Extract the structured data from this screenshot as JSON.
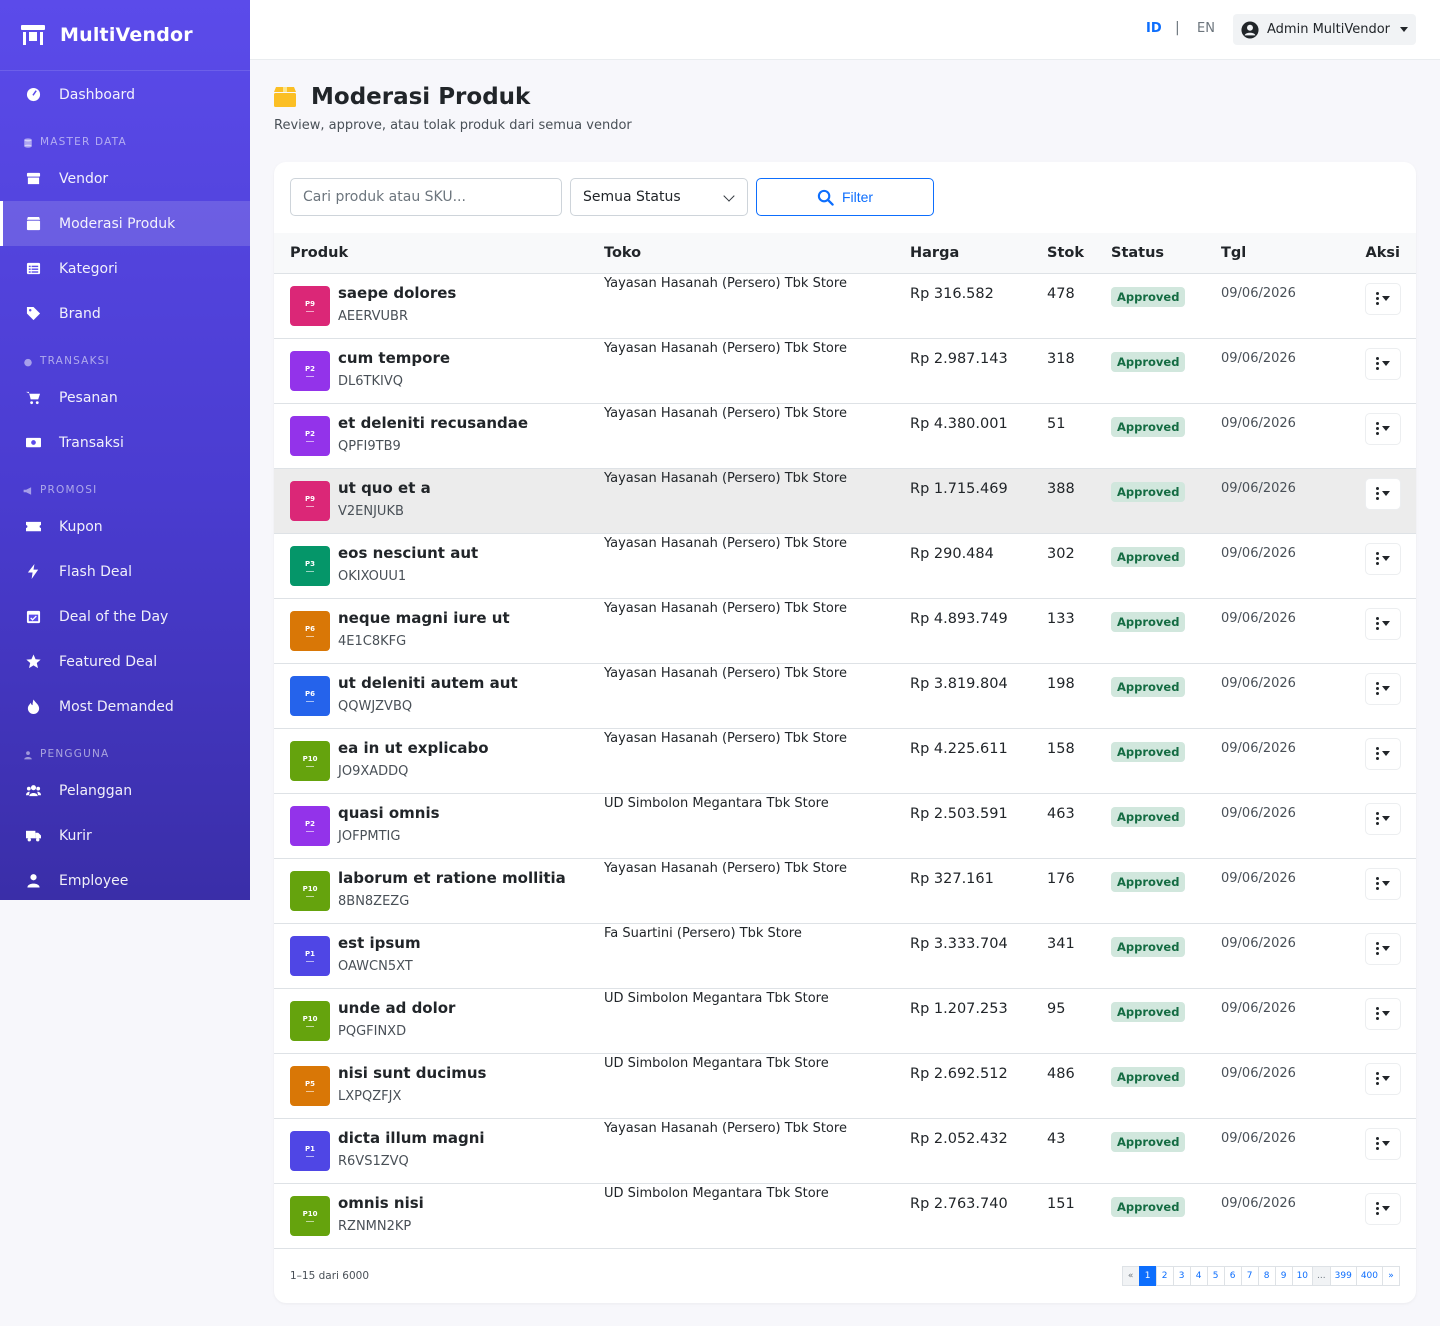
{
  "brand": {
    "name": "MultiVendor"
  },
  "sidebar": {
    "items": [
      {
        "type": "item",
        "label": "Dashboard",
        "icon": "dashboard-icon"
      },
      {
        "type": "section",
        "label": "MASTER DATA",
        "icon": "database-icon"
      },
      {
        "type": "item",
        "label": "Vendor",
        "icon": "store-icon"
      },
      {
        "type": "item",
        "label": "Moderasi Produk",
        "icon": "box-icon",
        "active": true
      },
      {
        "type": "item",
        "label": "Kategori",
        "icon": "list-icon"
      },
      {
        "type": "item",
        "label": "Brand",
        "icon": "tag-icon"
      },
      {
        "type": "section",
        "label": "TRANSAKSI",
        "icon": "coins-icon"
      },
      {
        "type": "item",
        "label": "Pesanan",
        "icon": "cart-icon"
      },
      {
        "type": "item",
        "label": "Transaksi",
        "icon": "money-icon"
      },
      {
        "type": "section",
        "label": "PROMOSI",
        "icon": "bullhorn-icon"
      },
      {
        "type": "item",
        "label": "Kupon",
        "icon": "ticket-icon"
      },
      {
        "type": "item",
        "label": "Flash Deal",
        "icon": "bolt-icon"
      },
      {
        "type": "item",
        "label": "Deal of the Day",
        "icon": "calendar-icon"
      },
      {
        "type": "item",
        "label": "Featured Deal",
        "icon": "star-icon"
      },
      {
        "type": "item",
        "label": "Most Demanded",
        "icon": "fire-icon"
      },
      {
        "type": "section",
        "label": "PENGGUNA",
        "icon": "users-section-icon"
      },
      {
        "type": "item",
        "label": "Pelanggan",
        "icon": "users-icon"
      },
      {
        "type": "item",
        "label": "Kurir",
        "icon": "truck-icon"
      },
      {
        "type": "item",
        "label": "Employee",
        "icon": "user-tie-icon"
      }
    ]
  },
  "topbar": {
    "lang_id": "ID",
    "lang_sep": "|",
    "lang_en": "EN",
    "user_name": "Admin MultiVendor"
  },
  "page": {
    "title": "Moderasi Produk",
    "subtitle": "Review, approve, atau tolak produk dari semua vendor"
  },
  "filters": {
    "search_placeholder": "Cari produk atau SKU...",
    "status_value": "Semua Status",
    "filter_label": "Filter"
  },
  "table": {
    "headers": {
      "produk": "Produk",
      "toko": "Toko",
      "harga": "Harga",
      "stok": "Stok",
      "status": "Status",
      "tgl": "Tgl",
      "aksi": "Aksi"
    },
    "rows": [
      {
        "thumb": "P9",
        "thumb_color": "#db2777",
        "name": "saepe dolores",
        "sku": "AEERVUBR",
        "toko": "Yayasan Hasanah (Persero) Tbk Store",
        "harga": "Rp 316.582",
        "stok": "478",
        "status": "Approved",
        "tgl": "09/06/2026"
      },
      {
        "thumb": "P2",
        "thumb_color": "#9333ea",
        "name": "cum tempore",
        "sku": "DL6TKIVQ",
        "toko": "Yayasan Hasanah (Persero) Tbk Store",
        "harga": "Rp 2.987.143",
        "stok": "318",
        "status": "Approved",
        "tgl": "09/06/2026"
      },
      {
        "thumb": "P2",
        "thumb_color": "#9333ea",
        "name": "et deleniti recusandae",
        "sku": "QPFI9TB9",
        "toko": "Yayasan Hasanah (Persero) Tbk Store",
        "harga": "Rp 4.380.001",
        "stok": "51",
        "status": "Approved",
        "tgl": "09/06/2026"
      },
      {
        "thumb": "P9",
        "thumb_color": "#db2777",
        "name": "ut quo et a",
        "sku": "V2ENJUKB",
        "toko": "Yayasan Hasanah (Persero) Tbk Store",
        "harga": "Rp 1.715.469",
        "stok": "388",
        "status": "Approved",
        "tgl": "09/06/2026"
      },
      {
        "thumb": "P3",
        "thumb_color": "#059669",
        "name": "eos nesciunt aut",
        "sku": "OKIXOUU1",
        "toko": "Yayasan Hasanah (Persero) Tbk Store",
        "harga": "Rp 290.484",
        "stok": "302",
        "status": "Approved",
        "tgl": "09/06/2026"
      },
      {
        "thumb": "P6",
        "thumb_color": "#d97706",
        "name": "neque magni iure ut",
        "sku": "4E1C8KFG",
        "toko": "Yayasan Hasanah (Persero) Tbk Store",
        "harga": "Rp 4.893.749",
        "stok": "133",
        "status": "Approved",
        "tgl": "09/06/2026"
      },
      {
        "thumb": "P6",
        "thumb_color": "#2563eb",
        "name": "ut deleniti autem aut",
        "sku": "QQWJZVBQ",
        "toko": "Yayasan Hasanah (Persero) Tbk Store",
        "harga": "Rp 3.819.804",
        "stok": "198",
        "status": "Approved",
        "tgl": "09/06/2026"
      },
      {
        "thumb": "P10",
        "thumb_color": "#65a30d",
        "name": "ea in ut explicabo",
        "sku": "JO9XADDQ",
        "toko": "Yayasan Hasanah (Persero) Tbk Store",
        "harga": "Rp 4.225.611",
        "stok": "158",
        "status": "Approved",
        "tgl": "09/06/2026"
      },
      {
        "thumb": "P2",
        "thumb_color": "#9333ea",
        "name": "quasi omnis",
        "sku": "JOFPMTIG",
        "toko": "UD Simbolon Megantara Tbk Store",
        "harga": "Rp 2.503.591",
        "stok": "463",
        "status": "Approved",
        "tgl": "09/06/2026"
      },
      {
        "thumb": "P10",
        "thumb_color": "#65a30d",
        "name": "laborum et ratione mollitia",
        "sku": "8BN8ZEZG",
        "toko": "Yayasan Hasanah (Persero) Tbk Store",
        "harga": "Rp 327.161",
        "stok": "176",
        "status": "Approved",
        "tgl": "09/06/2026"
      },
      {
        "thumb": "P1",
        "thumb_color": "#4f46e5",
        "name": "est ipsum",
        "sku": "OAWCN5XT",
        "toko": "Fa Suartini (Persero) Tbk Store",
        "harga": "Rp 3.333.704",
        "stok": "341",
        "status": "Approved",
        "tgl": "09/06/2026"
      },
      {
        "thumb": "P10",
        "thumb_color": "#65a30d",
        "name": "unde ad dolor",
        "sku": "PQGFINXD",
        "toko": "UD Simbolon Megantara Tbk Store",
        "harga": "Rp 1.207.253",
        "stok": "95",
        "status": "Approved",
        "tgl": "09/06/2026"
      },
      {
        "thumb": "P5",
        "thumb_color": "#d97706",
        "name": "nisi sunt ducimus",
        "sku": "LXPQZFJX",
        "toko": "UD Simbolon Megantara Tbk Store",
        "harga": "Rp 2.692.512",
        "stok": "486",
        "status": "Approved",
        "tgl": "09/06/2026"
      },
      {
        "thumb": "P1",
        "thumb_color": "#4f46e5",
        "name": "dicta illum magni",
        "sku": "R6VS1ZVQ",
        "toko": "Yayasan Hasanah (Persero) Tbk Store",
        "harga": "Rp 2.052.432",
        "stok": "43",
        "status": "Approved",
        "tgl": "09/06/2026"
      },
      {
        "thumb": "P10",
        "thumb_color": "#65a30d",
        "name": "omnis nisi",
        "sku": "RZNMN2KP",
        "toko": "UD Simbolon Megantara Tbk Store",
        "harga": "Rp 2.763.740",
        "stok": "151",
        "status": "Approved",
        "tgl": "09/06/2026"
      }
    ]
  },
  "footer": {
    "info": "1–15 dari 6000",
    "pages": [
      "«",
      "1",
      "2",
      "3",
      "4",
      "5",
      "6",
      "7",
      "8",
      "9",
      "10",
      "...",
      "399",
      "400",
      "»"
    ],
    "active_page": "1"
  },
  "colors": {
    "sidebar_top": "#5b4bea",
    "primary": "#0d6efd",
    "badge_bg": "#d1e7dd",
    "badge_text": "#146c43",
    "title_icon": "#fbbf24"
  }
}
